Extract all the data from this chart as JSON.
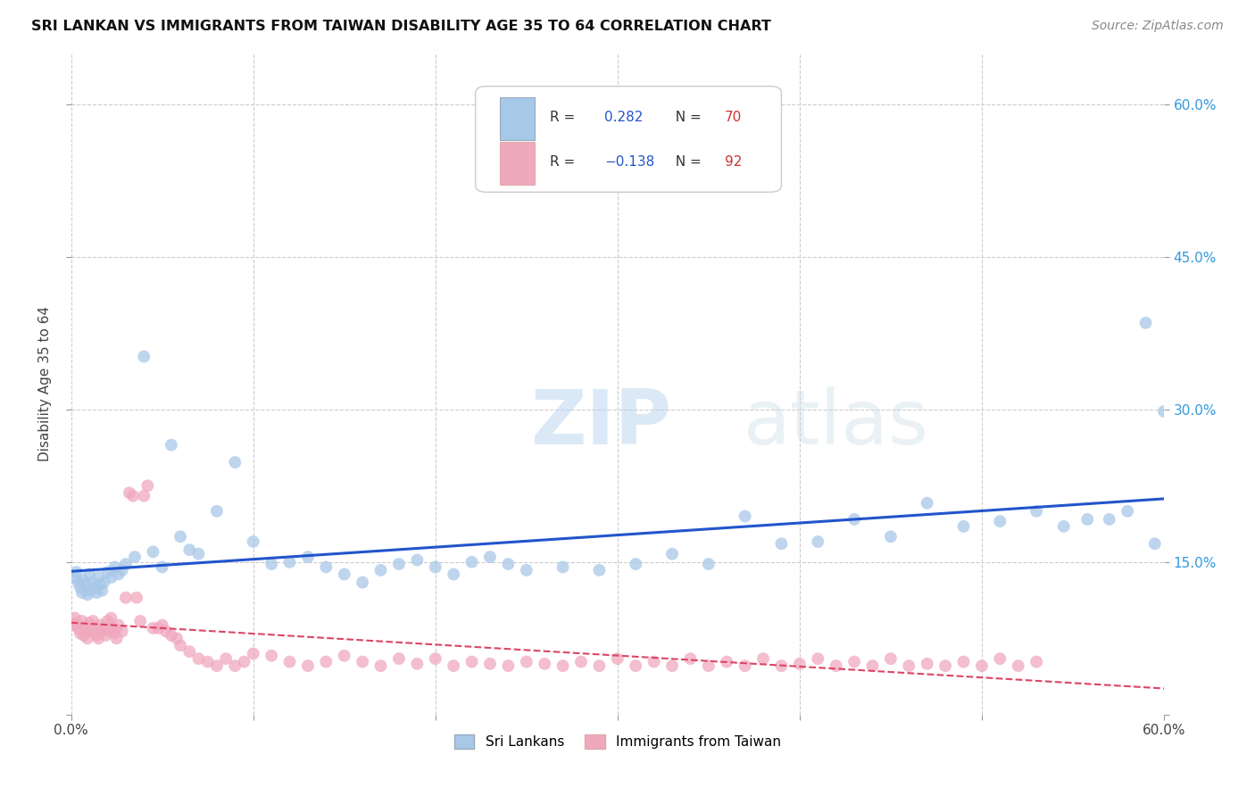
{
  "title": "SRI LANKAN VS IMMIGRANTS FROM TAIWAN DISABILITY AGE 35 TO 64 CORRELATION CHART",
  "source": "Source: ZipAtlas.com",
  "ylabel": "Disability Age 35 to 64",
  "xlim": [
    0.0,
    0.6
  ],
  "ylim": [
    0.0,
    0.65
  ],
  "background_color": "#ffffff",
  "grid_color": "#cccccc",
  "sri_lankan_color": "#a8c8e8",
  "taiwan_color": "#f0a8be",
  "sri_lankan_line_color": "#2255cc",
  "taiwan_line_color": "#dd4466",
  "R_sri": 0.282,
  "N_sri": 70,
  "R_taiwan": -0.138,
  "N_taiwan": 92,
  "legend_label_sri": "Sri Lankans",
  "legend_label_taiwan": "Immigrants from Taiwan",
  "sri_lankans_x": [
    0.002,
    0.003,
    0.004,
    0.005,
    0.006,
    0.007,
    0.008,
    0.009,
    0.01,
    0.011,
    0.012,
    0.013,
    0.014,
    0.015,
    0.016,
    0.017,
    0.018,
    0.02,
    0.022,
    0.024,
    0.026,
    0.028,
    0.03,
    0.035,
    0.04,
    0.045,
    0.05,
    0.055,
    0.06,
    0.065,
    0.07,
    0.08,
    0.09,
    0.1,
    0.11,
    0.12,
    0.13,
    0.14,
    0.15,
    0.16,
    0.17,
    0.18,
    0.19,
    0.2,
    0.21,
    0.22,
    0.23,
    0.24,
    0.25,
    0.27,
    0.29,
    0.31,
    0.33,
    0.35,
    0.37,
    0.39,
    0.41,
    0.43,
    0.45,
    0.47,
    0.49,
    0.51,
    0.53,
    0.545,
    0.558,
    0.57,
    0.58,
    0.59,
    0.595,
    0.6
  ],
  "sri_lankans_y": [
    0.135,
    0.14,
    0.13,
    0.125,
    0.12,
    0.132,
    0.128,
    0.118,
    0.138,
    0.122,
    0.13,
    0.125,
    0.12,
    0.135,
    0.128,
    0.122,
    0.13,
    0.14,
    0.135,
    0.145,
    0.138,
    0.142,
    0.148,
    0.155,
    0.352,
    0.16,
    0.145,
    0.265,
    0.175,
    0.162,
    0.158,
    0.2,
    0.248,
    0.17,
    0.148,
    0.15,
    0.155,
    0.145,
    0.138,
    0.13,
    0.142,
    0.148,
    0.152,
    0.145,
    0.138,
    0.15,
    0.155,
    0.148,
    0.142,
    0.145,
    0.142,
    0.148,
    0.158,
    0.148,
    0.195,
    0.168,
    0.17,
    0.192,
    0.175,
    0.208,
    0.185,
    0.19,
    0.2,
    0.185,
    0.192,
    0.192,
    0.2,
    0.385,
    0.168,
    0.298
  ],
  "taiwan_x": [
    0.001,
    0.002,
    0.003,
    0.004,
    0.005,
    0.006,
    0.007,
    0.008,
    0.009,
    0.01,
    0.011,
    0.012,
    0.013,
    0.014,
    0.015,
    0.016,
    0.017,
    0.018,
    0.019,
    0.02,
    0.021,
    0.022,
    0.023,
    0.024,
    0.025,
    0.026,
    0.028,
    0.03,
    0.032,
    0.034,
    0.036,
    0.038,
    0.04,
    0.042,
    0.045,
    0.048,
    0.05,
    0.052,
    0.055,
    0.058,
    0.06,
    0.065,
    0.07,
    0.075,
    0.08,
    0.085,
    0.09,
    0.095,
    0.1,
    0.11,
    0.12,
    0.13,
    0.14,
    0.15,
    0.16,
    0.17,
    0.18,
    0.19,
    0.2,
    0.21,
    0.22,
    0.23,
    0.24,
    0.25,
    0.26,
    0.27,
    0.28,
    0.29,
    0.3,
    0.31,
    0.32,
    0.33,
    0.34,
    0.35,
    0.36,
    0.37,
    0.38,
    0.39,
    0.4,
    0.41,
    0.42,
    0.43,
    0.44,
    0.45,
    0.46,
    0.47,
    0.48,
    0.49,
    0.5,
    0.51,
    0.52,
    0.53
  ],
  "taiwan_y": [
    0.088,
    0.095,
    0.09,
    0.085,
    0.08,
    0.092,
    0.078,
    0.082,
    0.075,
    0.09,
    0.085,
    0.092,
    0.08,
    0.078,
    0.075,
    0.088,
    0.082,
    0.085,
    0.078,
    0.092,
    0.082,
    0.095,
    0.085,
    0.08,
    0.075,
    0.088,
    0.082,
    0.115,
    0.218,
    0.215,
    0.115,
    0.092,
    0.215,
    0.225,
    0.085,
    0.085,
    0.088,
    0.082,
    0.078,
    0.075,
    0.068,
    0.062,
    0.055,
    0.052,
    0.048,
    0.055,
    0.048,
    0.052,
    0.06,
    0.058,
    0.052,
    0.048,
    0.052,
    0.058,
    0.052,
    0.048,
    0.055,
    0.05,
    0.055,
    0.048,
    0.052,
    0.05,
    0.048,
    0.052,
    0.05,
    0.048,
    0.052,
    0.048,
    0.055,
    0.048,
    0.052,
    0.048,
    0.055,
    0.048,
    0.052,
    0.048,
    0.055,
    0.048,
    0.05,
    0.055,
    0.048,
    0.052,
    0.048,
    0.055,
    0.048,
    0.05,
    0.048,
    0.052,
    0.048,
    0.055,
    0.048,
    0.052
  ]
}
